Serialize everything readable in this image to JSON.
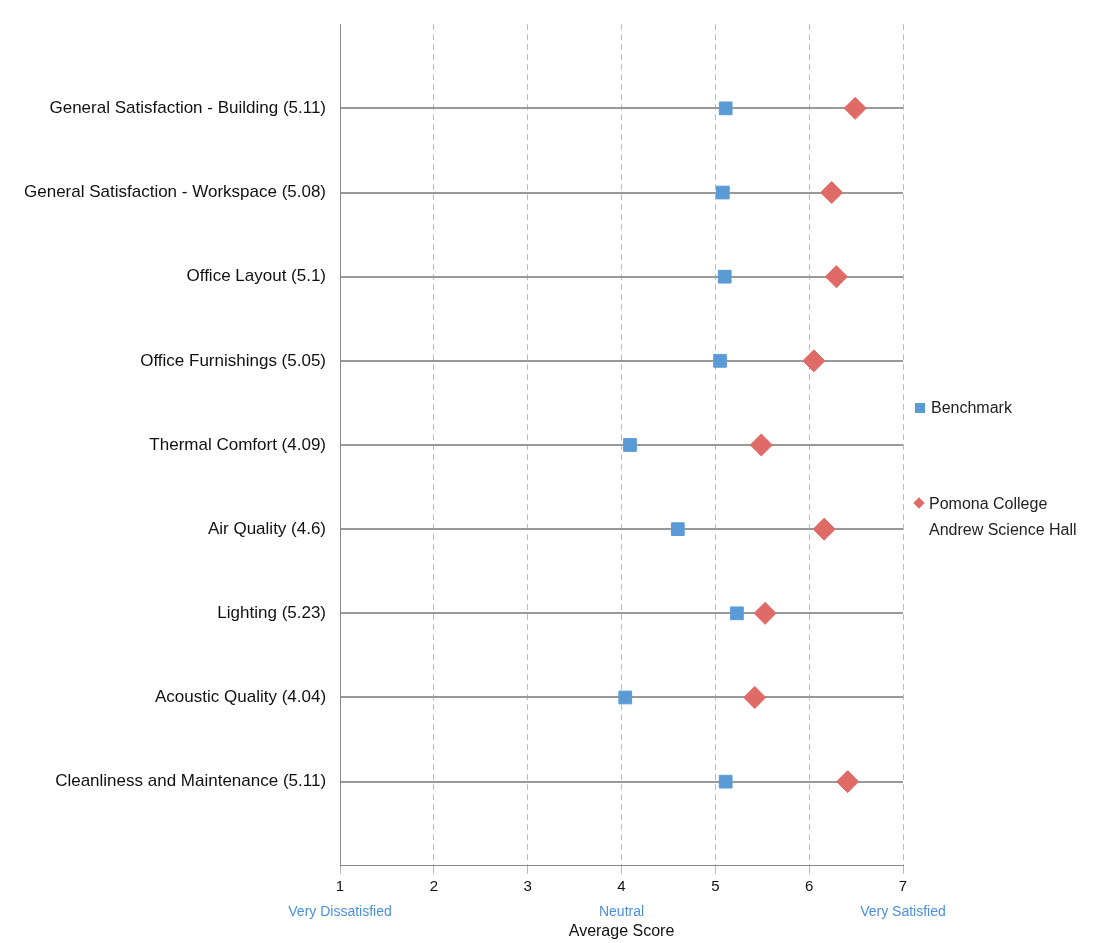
{
  "chart_data": {
    "type": "scatter",
    "xlabel": "Average Score",
    "categories": [
      "General Satisfaction - Building (5.11)",
      "General Satisfaction - Workspace (5.08)",
      "Office Layout (5.1)",
      "Office Furnishings (5.05)",
      "Thermal Comfort (4.09)",
      "Air Quality (4.6)",
      "Lighting (5.23)",
      "Acoustic Quality (4.04)",
      "Cleanliness and Maintenance (5.11)"
    ],
    "series": [
      {
        "name": "Benchmark",
        "color": "#5b9bd5",
        "marker": "square",
        "values": [
          5.11,
          5.08,
          5.1,
          5.05,
          4.09,
          4.6,
          5.23,
          4.04,
          5.11
        ]
      },
      {
        "name": "Pomona College Andrew Science Hall",
        "color": "#e06b66",
        "marker": "diamond",
        "values": [
          6.49,
          6.24,
          6.29,
          6.05,
          5.49,
          6.16,
          5.53,
          5.42,
          6.41
        ]
      }
    ],
    "xlim": [
      1,
      7
    ],
    "xticks": [
      1,
      2,
      3,
      4,
      5,
      6,
      7
    ],
    "annotations": [
      "Very Dissatisfied",
      "Neutral",
      "Very Satisfied"
    ],
    "grid": true,
    "legend": "right",
    "orientation": "horizontal"
  }
}
